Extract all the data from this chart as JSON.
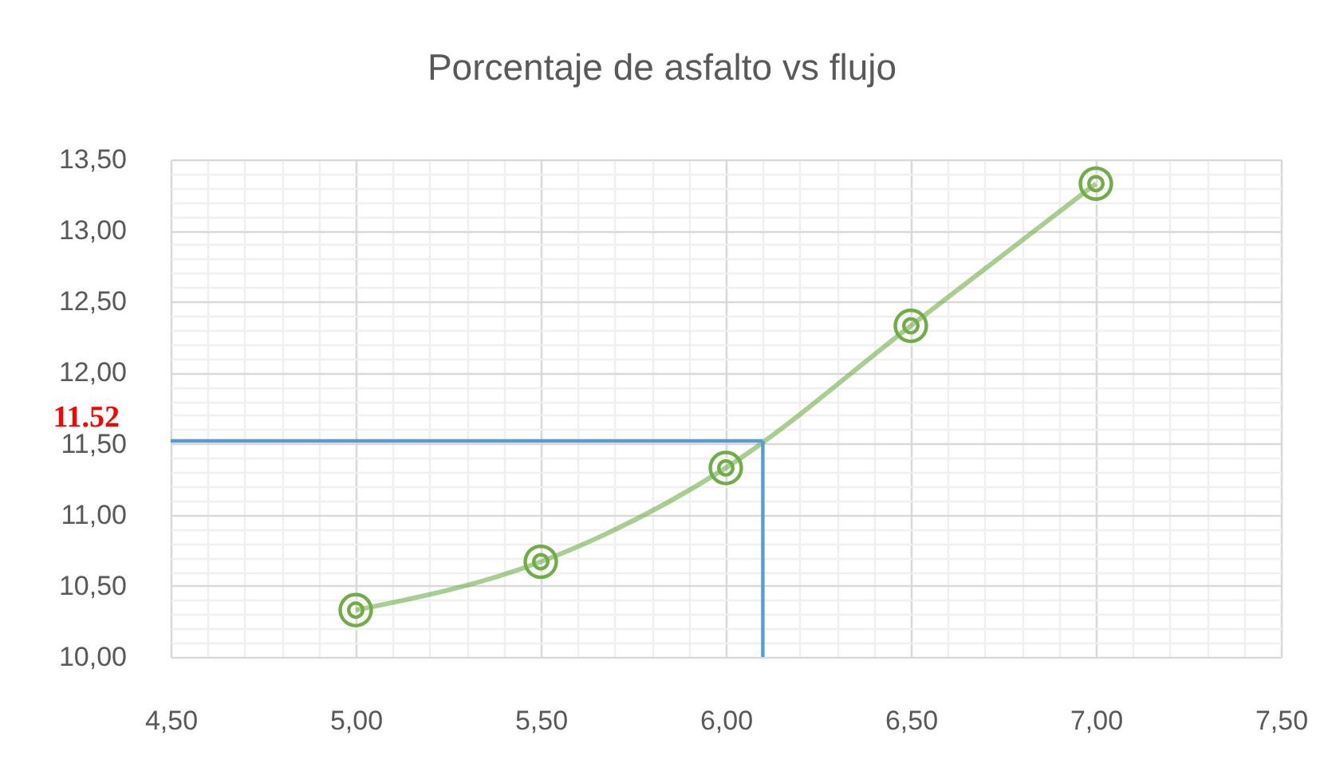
{
  "chart_data": {
    "type": "line",
    "title": "Porcentaje de asfalto vs flujo",
    "x": [
      5.0,
      5.5,
      6.0,
      6.5,
      7.0
    ],
    "series": [
      {
        "color": "#70ad47",
        "values": [
          10.33,
          10.67,
          11.33,
          12.33,
          13.33
        ]
      }
    ],
    "ref_lines": [
      {
        "axis": "y",
        "value": 11.52,
        "label": "11.52",
        "color": "#5b9bd5"
      },
      {
        "axis": "x",
        "value": 6.1,
        "color": "#5b9bd5"
      }
    ],
    "xlim": [
      4.5,
      7.5
    ],
    "xticks": [
      {
        "value": 4.5,
        "label": "4,50"
      },
      {
        "value": 4.6,
        "label": null
      },
      {
        "value": 4.7,
        "label": null
      },
      {
        "value": 4.8,
        "label": null
      },
      {
        "value": 4.9,
        "label": null
      },
      {
        "value": 5.0,
        "label": "5,00"
      },
      {
        "value": 5.1,
        "label": null
      },
      {
        "value": 5.2,
        "label": null
      },
      {
        "value": 5.3,
        "label": null
      },
      {
        "value": 5.4,
        "label": null
      },
      {
        "value": 5.5,
        "label": "5,50"
      },
      {
        "value": 5.6,
        "label": null
      },
      {
        "value": 5.7,
        "label": null
      },
      {
        "value": 5.8,
        "label": null
      },
      {
        "value": 5.9,
        "label": null
      },
      {
        "value": 6.0,
        "label": "6,00"
      },
      {
        "value": 6.1,
        "label": null
      },
      {
        "value": 6.2,
        "label": null
      },
      {
        "value": 6.3,
        "label": null
      },
      {
        "value": 6.4,
        "label": null
      },
      {
        "value": 6.5,
        "label": "6,50"
      },
      {
        "value": 6.6,
        "label": null
      },
      {
        "value": 6.7,
        "label": null
      },
      {
        "value": 6.8,
        "label": null
      },
      {
        "value": 6.9,
        "label": null
      },
      {
        "value": 7.0,
        "label": "7,00"
      },
      {
        "value": 7.1,
        "label": null
      },
      {
        "value": 7.2,
        "label": null
      },
      {
        "value": 7.3,
        "label": null
      },
      {
        "value": 7.4,
        "label": null
      },
      {
        "value": 7.5,
        "label": "7,50"
      }
    ],
    "ylim": [
      10.0,
      13.5
    ],
    "yticks": [
      {
        "value": 10.0,
        "label": "10,00"
      },
      {
        "value": 10.1,
        "label": null
      },
      {
        "value": 10.2,
        "label": null
      },
      {
        "value": 10.3,
        "label": null
      },
      {
        "value": 10.4,
        "label": null
      },
      {
        "value": 10.5,
        "label": "10,50"
      },
      {
        "value": 10.6,
        "label": null
      },
      {
        "value": 10.7,
        "label": null
      },
      {
        "value": 10.8,
        "label": null
      },
      {
        "value": 10.9,
        "label": null
      },
      {
        "value": 11.0,
        "label": "11,00"
      },
      {
        "value": 11.1,
        "label": null
      },
      {
        "value": 11.2,
        "label": null
      },
      {
        "value": 11.3,
        "label": null
      },
      {
        "value": 11.4,
        "label": null
      },
      {
        "value": 11.5,
        "label": "11,50"
      },
      {
        "value": 11.6,
        "label": null
      },
      {
        "value": 11.7,
        "label": null
      },
      {
        "value": 11.8,
        "label": null
      },
      {
        "value": 11.9,
        "label": null
      },
      {
        "value": 12.0,
        "label": "12,00"
      },
      {
        "value": 12.1,
        "label": null
      },
      {
        "value": 12.2,
        "label": null
      },
      {
        "value": 12.3,
        "label": null
      },
      {
        "value": 12.4,
        "label": null
      },
      {
        "value": 12.5,
        "label": "12,50"
      },
      {
        "value": 12.6,
        "label": null
      },
      {
        "value": 12.7,
        "label": null
      },
      {
        "value": 12.8,
        "label": null
      },
      {
        "value": 12.9,
        "label": null
      },
      {
        "value": 13.0,
        "label": "13,00"
      },
      {
        "value": 13.1,
        "label": null
      },
      {
        "value": 13.2,
        "label": null
      },
      {
        "value": 13.3,
        "label": null
      },
      {
        "value": 13.4,
        "label": null
      },
      {
        "value": 13.5,
        "label": "13,50"
      }
    ],
    "grid": true,
    "marker": "circle"
  }
}
